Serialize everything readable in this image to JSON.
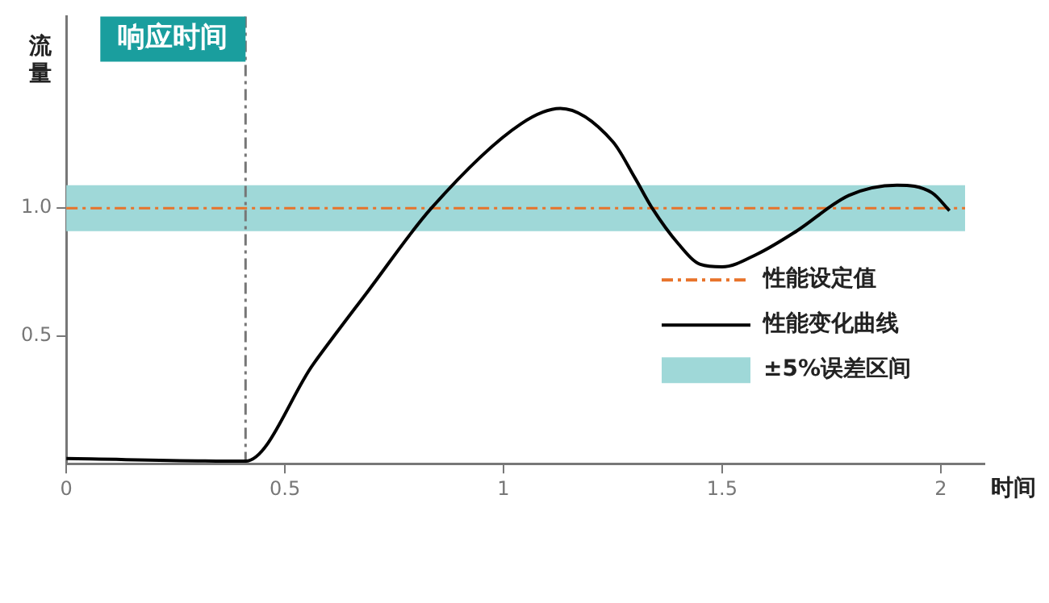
{
  "chart_data": {
    "type": "line",
    "xlabel": "时间",
    "ylabel": "流量",
    "xlim": [
      0,
      2.1
    ],
    "ylim": [
      0,
      1.75
    ],
    "xticks": [
      0,
      0.5,
      1,
      1.5,
      2
    ],
    "yticks": [
      {
        "value": 0.5,
        "label": "0.5"
      },
      {
        "value": 1,
        "label": "1.0"
      }
    ],
    "series": [
      {
        "name": "性能变化曲线",
        "color": "#000000",
        "x": [
          0,
          0.41,
          0.565,
          0.69,
          0.835,
          1.04,
          1.13,
          1.25,
          1.3,
          1.34,
          1.4,
          1.45,
          1.5,
          1.58,
          1.67,
          1.79,
          1.9,
          1.98,
          2.02
        ],
        "values": [
          0.02,
          0.01,
          0.39,
          0.675,
          1.0,
          1.33,
          1.39,
          1.26,
          1.12,
          1.0,
          0.86,
          0.78,
          0.77,
          0.82,
          0.91,
          1.05,
          1.09,
          1.06,
          0.99
        ]
      }
    ],
    "ref_lines": [
      {
        "axis": "y",
        "value": 1,
        "label": "性能设定值",
        "color": "#e8732a",
        "line_style": "dashed"
      },
      {
        "axis": "x",
        "value": 0.41,
        "label": "响应时间",
        "color": "#777777",
        "line_style": "dashed"
      }
    ],
    "bands": [
      {
        "axis": "y",
        "from": 0.91,
        "to": 1.09,
        "label": "±5%误差区间",
        "color": "#9fd8d8"
      }
    ],
    "grid": false,
    "legend": "bottom right",
    "marker": "none",
    "line_style": "solid"
  }
}
